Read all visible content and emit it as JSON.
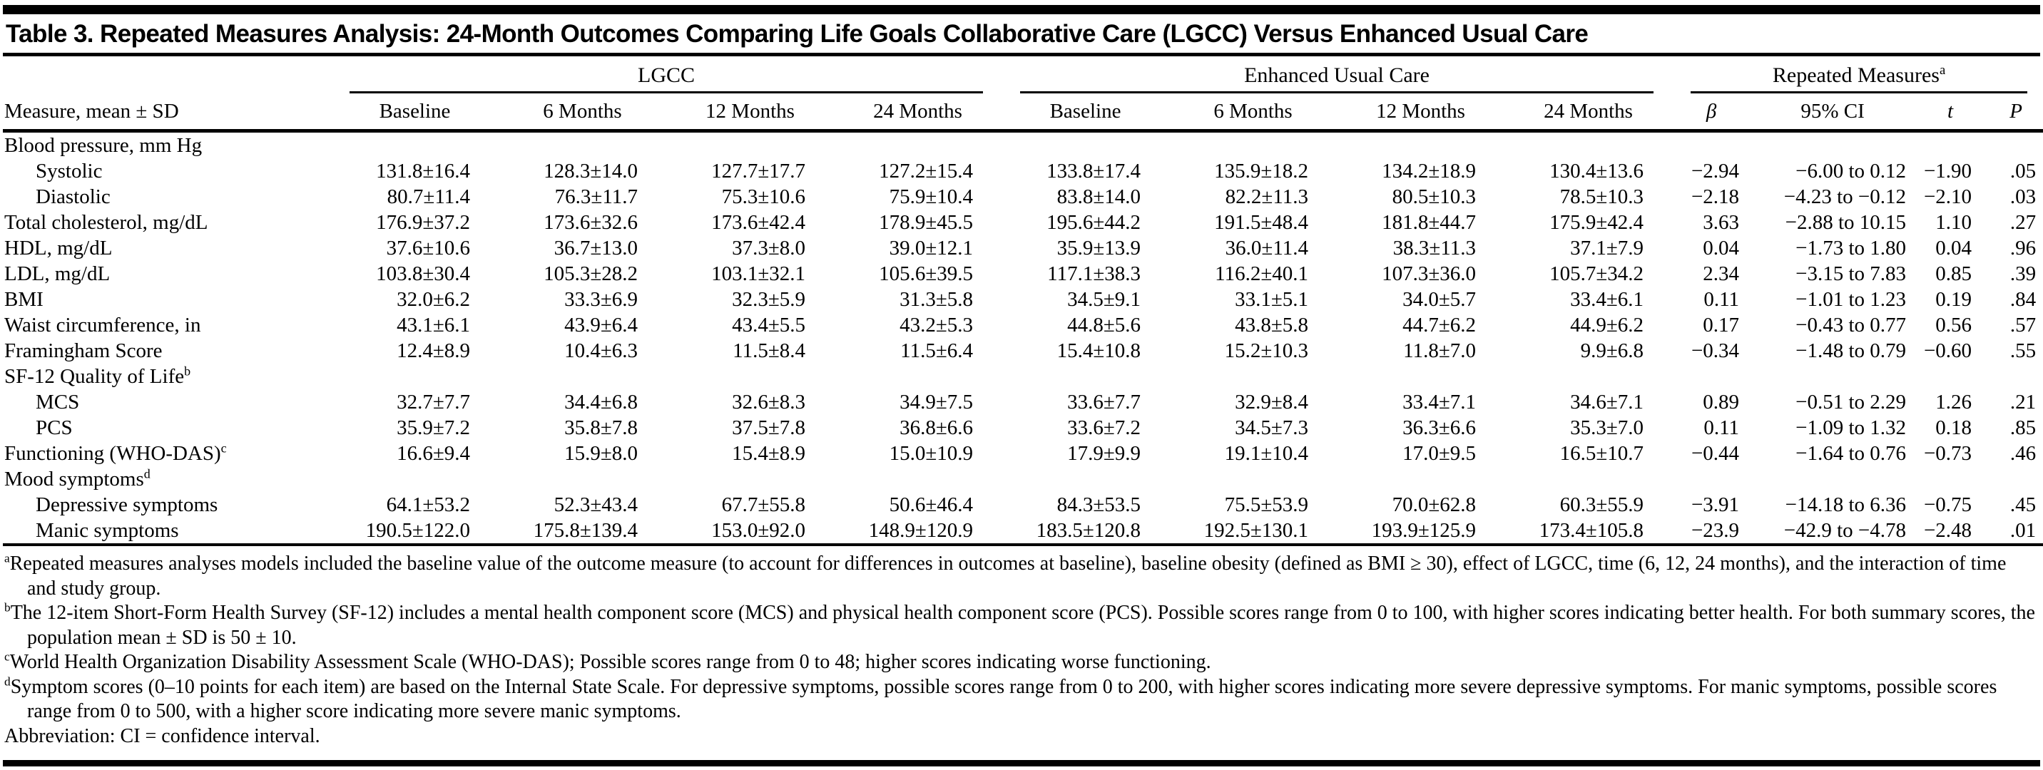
{
  "title": "Table 3. Repeated Measures Analysis: 24-Month Outcomes Comparing Life Goals Collaborative Care (LGCC) Versus Enhanced Usual Care",
  "table": {
    "measure_header": "Measure, mean ± SD",
    "italic_columns": [
      "β",
      "t",
      "P"
    ],
    "groups": [
      {
        "label": "LGCC",
        "sup": "",
        "columns": [
          "Baseline",
          "6 Months",
          "12 Months",
          "24 Months"
        ]
      },
      {
        "label": "Enhanced Usual Care",
        "sup": "",
        "columns": [
          "Baseline",
          "6 Months",
          "12 Months",
          "24 Months"
        ]
      },
      {
        "label": "Repeated Measures",
        "sup": "a",
        "columns": [
          "β",
          "95% CI",
          "t",
          "P"
        ]
      }
    ],
    "rows": [
      {
        "label": "Blood pressure, mm Hg",
        "sup": "",
        "indent": false,
        "cells": []
      },
      {
        "label": "Systolic",
        "sup": "",
        "indent": true,
        "cells": [
          "131.8±16.4",
          "128.3±14.0",
          "127.7±17.7",
          "127.2±15.4",
          "133.8±17.4",
          "135.9±18.2",
          "134.2±18.9",
          "130.4±13.6",
          "−2.94",
          "−6.00 to 0.12",
          "−1.90",
          ".05"
        ]
      },
      {
        "label": "Diastolic",
        "sup": "",
        "indent": true,
        "cells": [
          "80.7±11.4",
          "76.3±11.7",
          "75.3±10.6",
          "75.9±10.4",
          "83.8±14.0",
          "82.2±11.3",
          "80.5±10.3",
          "78.5±10.3",
          "−2.18",
          "−4.23 to −0.12",
          "−2.10",
          ".03"
        ]
      },
      {
        "label": "Total cholesterol, mg/dL",
        "sup": "",
        "indent": false,
        "cells": [
          "176.9±37.2",
          "173.6±32.6",
          "173.6±42.4",
          "178.9±45.5",
          "195.6±44.2",
          "191.5±48.4",
          "181.8±44.7",
          "175.9±42.4",
          "3.63",
          "−2.88 to 10.15",
          "1.10",
          ".27"
        ]
      },
      {
        "label": "HDL, mg/dL",
        "sup": "",
        "indent": false,
        "cells": [
          "37.6±10.6",
          "36.7±13.0",
          "37.3±8.0",
          "39.0±12.1",
          "35.9±13.9",
          "36.0±11.4",
          "38.3±11.3",
          "37.1±7.9",
          "0.04",
          "−1.73 to 1.80",
          "0.04",
          ".96"
        ]
      },
      {
        "label": "LDL, mg/dL",
        "sup": "",
        "indent": false,
        "cells": [
          "103.8±30.4",
          "105.3±28.2",
          "103.1±32.1",
          "105.6±39.5",
          "117.1±38.3",
          "116.2±40.1",
          "107.3±36.0",
          "105.7±34.2",
          "2.34",
          "−3.15 to 7.83",
          "0.85",
          ".39"
        ]
      },
      {
        "label": "BMI",
        "sup": "",
        "indent": false,
        "cells": [
          "32.0±6.2",
          "33.3±6.9",
          "32.3±5.9",
          "31.3±5.8",
          "34.5±9.1",
          "33.1±5.1",
          "34.0±5.7",
          "33.4±6.1",
          "0.11",
          "−1.01 to 1.23",
          "0.19",
          ".84"
        ]
      },
      {
        "label": "Waist circumference, in",
        "sup": "",
        "indent": false,
        "cells": [
          "43.1±6.1",
          "43.9±6.4",
          "43.4±5.5",
          "43.2±5.3",
          "44.8±5.6",
          "43.8±5.8",
          "44.7±6.2",
          "44.9±6.2",
          "0.17",
          "−0.43 to 0.77",
          "0.56",
          ".57"
        ]
      },
      {
        "label": "Framingham Score",
        "sup": "",
        "indent": false,
        "cells": [
          "12.4±8.9",
          "10.4±6.3",
          "11.5±8.4",
          "11.5±6.4",
          "15.4±10.8",
          "15.2±10.3",
          "11.8±7.0",
          "9.9±6.8",
          "−0.34",
          "−1.48 to 0.79",
          "−0.60",
          ".55"
        ]
      },
      {
        "label": "SF-12 Quality of Life",
        "sup": "b",
        "indent": false,
        "cells": []
      },
      {
        "label": "MCS",
        "sup": "",
        "indent": true,
        "cells": [
          "32.7±7.7",
          "34.4±6.8",
          "32.6±8.3",
          "34.9±7.5",
          "33.6±7.7",
          "32.9±8.4",
          "33.4±7.1",
          "34.6±7.1",
          "0.89",
          "−0.51 to 2.29",
          "1.26",
          ".21"
        ]
      },
      {
        "label": "PCS",
        "sup": "",
        "indent": true,
        "cells": [
          "35.9±7.2",
          "35.8±7.8",
          "37.5±7.8",
          "36.8±6.6",
          "33.6±7.2",
          "34.5±7.3",
          "36.3±6.6",
          "35.3±7.0",
          "0.11",
          "−1.09 to 1.32",
          "0.18",
          ".85"
        ]
      },
      {
        "label": "Functioning (WHO-DAS)",
        "sup": "c",
        "indent": false,
        "cells": [
          "16.6±9.4",
          "15.9±8.0",
          "15.4±8.9",
          "15.0±10.9",
          "17.9±9.9",
          "19.1±10.4",
          "17.0±9.5",
          "16.5±10.7",
          "−0.44",
          "−1.64 to 0.76",
          "−0.73",
          ".46"
        ]
      },
      {
        "label": "Mood symptoms",
        "sup": "d",
        "indent": false,
        "cells": []
      },
      {
        "label": "Depressive symptoms",
        "sup": "",
        "indent": true,
        "cells": [
          "64.1±53.2",
          "52.3±43.4",
          "67.7±55.8",
          "50.6±46.4",
          "84.3±53.5",
          "75.5±53.9",
          "70.0±62.8",
          "60.3±55.9",
          "−3.91",
          "−14.18 to 6.36",
          "−0.75",
          ".45"
        ]
      },
      {
        "label": "Manic symptoms",
        "sup": "",
        "indent": true,
        "cells": [
          "190.5±122.0",
          "175.8±139.4",
          "153.0±92.0",
          "148.9±120.9",
          "183.5±120.8",
          "192.5±130.1",
          "193.9±125.9",
          "173.4±105.8",
          "−23.9",
          "−42.9 to −4.78",
          "−2.48",
          ".01"
        ]
      }
    ]
  },
  "footnotes": [
    {
      "sup": "a",
      "text": "Repeated measures analyses models included the baseline value of the outcome measure (to account for differences in outcomes at baseline), baseline obesity (defined as BMI ≥ 30), effect of LGCC, time (6, 12, 24 months), and the interaction of time and study group."
    },
    {
      "sup": "b",
      "text": "The 12-item Short-Form Health Survey (SF-12) includes a mental health component score (MCS) and physical health component score (PCS). Possible scores range from 0 to 100, with higher scores indicating better health. For both summary scores, the population mean ± SD is 50 ± 10."
    },
    {
      "sup": "c",
      "text": "World Health Organization Disability Assessment Scale (WHO-DAS); Possible scores range from 0 to 48; higher scores indicating worse functioning."
    },
    {
      "sup": "d",
      "text": "Symptom scores (0–10 points for each item) are based on the Internal State Scale. For depressive symptoms, possible scores range from 0 to 200, with higher scores indicating more severe depressive symptoms. For manic symptoms, possible scores range from 0 to 500, with a higher score indicating more severe manic symptoms."
    },
    {
      "sup": "",
      "text": "Abbreviation: CI = confidence interval."
    }
  ]
}
